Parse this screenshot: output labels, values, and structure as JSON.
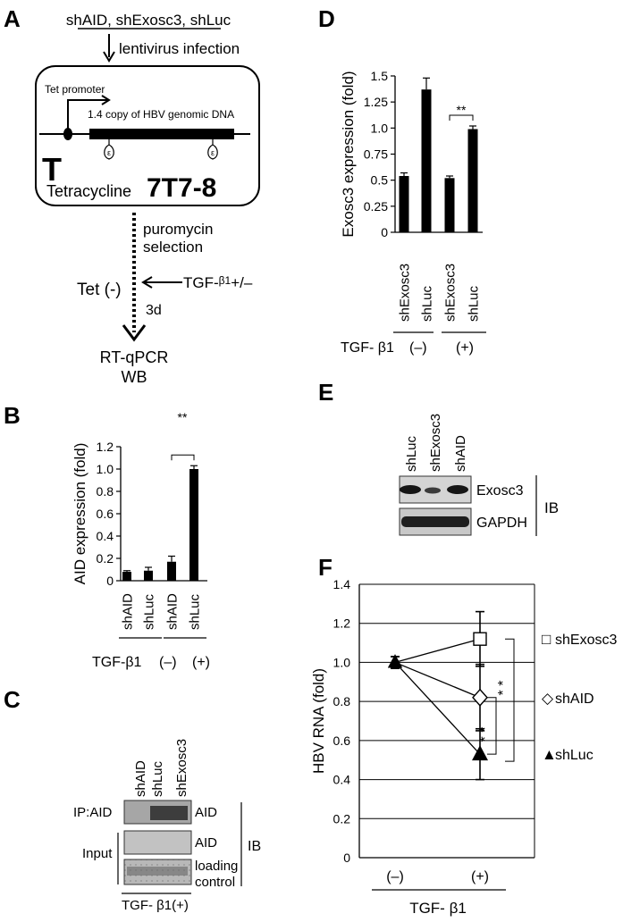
{
  "panels": {
    "A": {
      "letter": "A",
      "constructs": "shAID, shExosc3, shLuc",
      "infection": "lentivirus infection",
      "tet_promoter": "Tet promoter",
      "hbv_label": "1.4 copy of HBV genomic DNA",
      "epsilon": "ε",
      "tet_symbol": "T",
      "tetracycline": "Tetracycline",
      "cell_line": "7T7-8",
      "selection_line1": "puromycin",
      "selection_line2": "selection",
      "tet_minus": "Tet (-)",
      "tgf_prefix": "TGF-",
      "tgf_beta": "β1",
      "tgf_suffix": "+/–",
      "days": "3d",
      "readout1": "RT-qPCR",
      "readout2": "WB"
    },
    "B": {
      "letter": "B",
      "tgf_label": "TGF-β1",
      "group_minus": "(–)",
      "group_plus": "(+)",
      "sig": "**"
    },
    "C": {
      "letter": "C",
      "lanes": [
        "shAID",
        "shLuc",
        "shExosc3"
      ],
      "row_ip": "IP:AID",
      "row_input": "Input",
      "band_aid1": "AID",
      "band_aid2": "AID",
      "band_loading1": "loading",
      "band_loading2": "control",
      "ib": "IB",
      "tgf_label": "TGF- β1(+)"
    },
    "D": {
      "letter": "D",
      "tgf_label": "TGF- β1",
      "group_minus": "(–)",
      "group_plus": "(+)",
      "sig": "**"
    },
    "E": {
      "letter": "E",
      "lanes": [
        "shLuc",
        "shExosc3",
        "shAID"
      ],
      "band1": "Exosc3",
      "band2": "GAPDH",
      "ib": "IB"
    },
    "F": {
      "letter": "F",
      "x_title": "TGF- β1",
      "sig1": "* *",
      "sig2": "* *"
    }
  },
  "chart_data": [
    {
      "panel": "B",
      "type": "bar",
      "ylabel": "AID expression (fold)",
      "ylim": [
        0,
        1.2
      ],
      "yticks": [
        "0",
        "0.2",
        "0.4",
        "0.6",
        "0.8",
        "1.0",
        "1.2"
      ],
      "categories": [
        "shAID",
        "shLuc",
        "shAID",
        "shLuc"
      ],
      "values": [
        0.08,
        0.09,
        0.17,
        1.0
      ],
      "errors": [
        0.01,
        0.03,
        0.05,
        0.03
      ],
      "groups": [
        "(–)",
        "(–)",
        "(+)",
        "(+)"
      ],
      "color": "#000000"
    },
    {
      "panel": "D",
      "type": "bar",
      "ylabel": "Exosc3 expression (fold)",
      "ylim": [
        0,
        1.5
      ],
      "yticks": [
        "0",
        "0.25",
        "0.5",
        "0.75",
        "1.0",
        "1.25",
        "1.5"
      ],
      "categories": [
        "shExosc3",
        "shLuc",
        "shExosc3",
        "shLuc"
      ],
      "values": [
        0.54,
        1.37,
        0.52,
        0.99
      ],
      "errors": [
        0.03,
        0.11,
        0.02,
        0.03
      ],
      "groups": [
        "(–)",
        "(–)",
        "(+)",
        "(+)"
      ],
      "color": "#000000"
    },
    {
      "panel": "F",
      "type": "line",
      "ylabel": "HBV RNA (fold)",
      "ylim": [
        0,
        1.4
      ],
      "yticks": [
        "0",
        "0.2",
        "0.4",
        "0.6",
        "0.8",
        "1.0",
        "1.2",
        "1.4"
      ],
      "categories": [
        "(–)",
        "(+)"
      ],
      "grid": true,
      "series": [
        {
          "name": "shExosc3",
          "marker": "square",
          "legend_symbol": "□",
          "values": [
            1.0,
            1.12
          ],
          "errors": [
            0.03,
            0.14
          ]
        },
        {
          "name": "shAID",
          "marker": "diamond",
          "legend_symbol": "◇",
          "values": [
            1.0,
            0.82
          ],
          "errors": [
            0.03,
            0.17
          ]
        },
        {
          "name": "shLuc",
          "marker": "triangle",
          "legend_symbol": "▲",
          "values": [
            1.0,
            0.53
          ],
          "errors": [
            0.03,
            0.13
          ]
        }
      ]
    }
  ]
}
